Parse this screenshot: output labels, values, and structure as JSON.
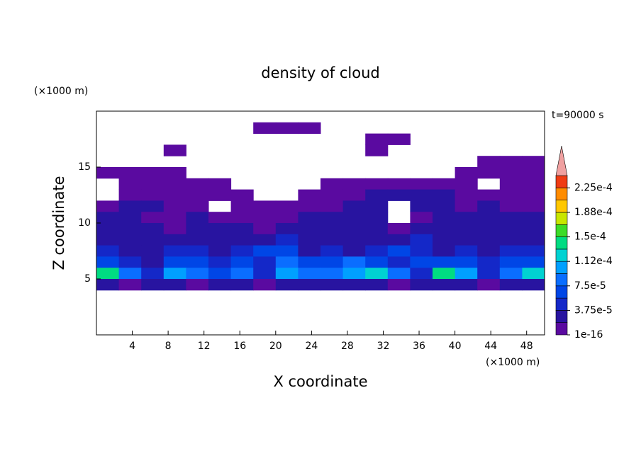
{
  "chart_data": {
    "type": "contour",
    "title": "density of cloud",
    "subtitle": "t=90000 s",
    "x_label": "X coordinate",
    "y_label": "Z coordinate",
    "x_unit": "(×1000 m)",
    "y_unit": "(×1000 m)",
    "xlim": [
      0,
      50
    ],
    "xticks": [
      4,
      8,
      12,
      16,
      20,
      24,
      28,
      32,
      36,
      40,
      44,
      48
    ],
    "ylim": [
      0,
      20
    ],
    "yticks": [
      5,
      10,
      15
    ],
    "x": [
      1.25,
      3.75,
      6.25,
      8.75,
      11.25,
      13.75,
      16.25,
      18.75,
      21.25,
      23.75,
      26.25,
      28.75,
      31.25,
      33.75,
      36.25,
      38.75,
      41.25,
      43.75,
      46.25,
      48.75
    ],
    "y": [
      18.5,
      17.5,
      16.5,
      15.5,
      14.5,
      13.5,
      12.5,
      11.5,
      10.5,
      9.5,
      8.5,
      7.5,
      6.5,
      5.5,
      4.5
    ],
    "z": [
      [
        0,
        0,
        0,
        0,
        0,
        0,
        0,
        1e-05,
        1e-05,
        1e-05,
        0,
        0,
        0,
        0,
        0,
        0,
        0,
        0,
        0,
        0
      ],
      [
        0,
        0,
        0,
        0,
        0,
        0,
        0,
        0,
        0,
        0,
        0,
        0,
        1e-05,
        1e-05,
        0,
        0,
        0,
        0,
        0,
        0
      ],
      [
        0,
        0,
        0,
        1e-05,
        0,
        0,
        0,
        0,
        0,
        0,
        0,
        0,
        1e-05,
        0,
        0,
        0,
        0,
        0,
        0,
        0
      ],
      [
        0,
        0,
        0,
        0,
        0,
        0,
        0,
        0,
        0,
        0,
        0,
        0,
        0,
        0,
        0,
        0,
        0,
        1e-05,
        1e-05,
        1e-05
      ],
      [
        1e-05,
        1e-05,
        1e-05,
        1e-05,
        0,
        0,
        0,
        0,
        0,
        0,
        0,
        0,
        0,
        0,
        0,
        0,
        1e-05,
        1e-05,
        1e-05,
        1e-05
      ],
      [
        0,
        1e-05,
        1e-05,
        1e-05,
        1e-05,
        1e-05,
        0,
        0,
        0,
        0,
        1e-05,
        1e-05,
        1e-05,
        1e-05,
        1e-05,
        1e-05,
        1e-05,
        0,
        1e-05,
        1e-05
      ],
      [
        0,
        1e-05,
        1e-05,
        1e-05,
        1e-05,
        1e-05,
        1e-05,
        0,
        0,
        1e-05,
        1e-05,
        1e-05,
        2.5e-05,
        2.5e-05,
        2.5e-05,
        2.5e-05,
        1e-05,
        1e-05,
        1e-05,
        1e-05
      ],
      [
        1e-05,
        2.5e-05,
        2.5e-05,
        1e-05,
        1e-05,
        0,
        1e-05,
        1e-05,
        1e-05,
        1e-05,
        1e-05,
        2.5e-05,
        2.5e-05,
        0,
        2.5e-05,
        2.5e-05,
        1e-05,
        2.5e-05,
        1e-05,
        1e-05
      ],
      [
        2.5e-05,
        2.5e-05,
        1e-05,
        1e-05,
        2.5e-05,
        1e-05,
        1e-05,
        1e-05,
        1e-05,
        2.5e-05,
        2.5e-05,
        2.5e-05,
        2.5e-05,
        0,
        1e-05,
        2.5e-05,
        2.5e-05,
        2.5e-05,
        2.5e-05,
        2.5e-05
      ],
      [
        2.5e-05,
        2.5e-05,
        2.5e-05,
        1e-05,
        2.5e-05,
        2.5e-05,
        2.5e-05,
        1e-05,
        2.5e-05,
        2.5e-05,
        2.5e-05,
        2.5e-05,
        2.5e-05,
        1e-05,
        2.5e-05,
        2.5e-05,
        2.5e-05,
        2.5e-05,
        2.5e-05,
        2.5e-05
      ],
      [
        2.5e-05,
        2.5e-05,
        2.5e-05,
        2.5e-05,
        2.5e-05,
        2.5e-05,
        2.5e-05,
        2.5e-05,
        4.5e-05,
        2.5e-05,
        2.5e-05,
        2.5e-05,
        2.5e-05,
        2.5e-05,
        4.5e-05,
        2.5e-05,
        2.5e-05,
        2.5e-05,
        2.5e-05,
        2.5e-05
      ],
      [
        4.5e-05,
        2.5e-05,
        2.5e-05,
        4.5e-05,
        4.5e-05,
        2.5e-05,
        4.5e-05,
        6e-05,
        6e-05,
        2.5e-05,
        4.5e-05,
        2.5e-05,
        4.5e-05,
        6e-05,
        4.5e-05,
        2.5e-05,
        4.5e-05,
        2.5e-05,
        4.5e-05,
        4.5e-05
      ],
      [
        6e-05,
        4.5e-05,
        2.5e-05,
        6e-05,
        6e-05,
        4.5e-05,
        6e-05,
        4.5e-05,
        8e-05,
        6e-05,
        6e-05,
        8e-05,
        6e-05,
        4.5e-05,
        6e-05,
        6e-05,
        6e-05,
        4.5e-05,
        6e-05,
        6e-05
      ],
      [
        0.000135,
        8e-05,
        4.5e-05,
        0.0001,
        8e-05,
        6e-05,
        8e-05,
        4.5e-05,
        0.0001,
        8e-05,
        8e-05,
        0.0001,
        0.00012,
        8e-05,
        4.5e-05,
        0.000135,
        0.0001,
        4.5e-05,
        8e-05,
        0.00012
      ],
      [
        2.5e-05,
        1e-05,
        2.5e-05,
        2.5e-05,
        1e-05,
        2.5e-05,
        2.5e-05,
        1e-05,
        2.5e-05,
        2.5e-05,
        2.5e-05,
        2.5e-05,
        2.5e-05,
        1e-05,
        2.5e-05,
        2.5e-05,
        2.5e-05,
        1e-05,
        2.5e-05,
        2.5e-05
      ]
    ],
    "colorbar": {
      "levels": [
        1e-16,
        1.875e-05,
        3.75e-05,
        5.625e-05,
        7.5e-05,
        9.375e-05,
        0.0001125,
        0.00013125,
        0.00015,
        0.00016875,
        0.0001875,
        0.00020625,
        0.000225,
        0.00024375
      ],
      "colors": [
        "#5a0aa0",
        "#2814a0",
        "#1428c8",
        "#0046e6",
        "#0a6eff",
        "#00a0ff",
        "#00d2d2",
        "#00dc82",
        "#3cdc28",
        "#c8e600",
        "#ffc800",
        "#ff8c00",
        "#f03c14"
      ],
      "over_color": "#f0a0a0",
      "ticks": [
        1e-16,
        {
          "value": 3.75e-05,
          "label": "3.75e-5"
        },
        {
          "value": 7.5e-05,
          "label": "7.5e-5"
        },
        {
          "value": 0.0001125,
          "label": "1.12e-4"
        },
        {
          "value": 0.00015,
          "label": "1.5e-4"
        },
        {
          "value": 0.0001875,
          "label": "1.88e-4"
        },
        {
          "value": 0.000225,
          "label": "2.25e-4"
        }
      ]
    }
  }
}
